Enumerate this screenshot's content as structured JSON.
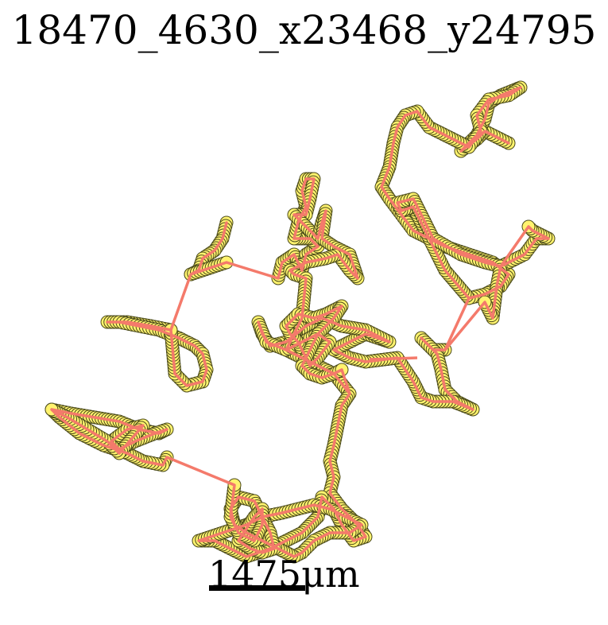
{
  "title": "18470_4630_x23468_y24795",
  "scale_label": "1475μm",
  "colors": {
    "track_line": "#f47a6b",
    "marker_fill": "#fff36e",
    "marker_edge": "#4a4a1a",
    "text": "#000000"
  }
}
